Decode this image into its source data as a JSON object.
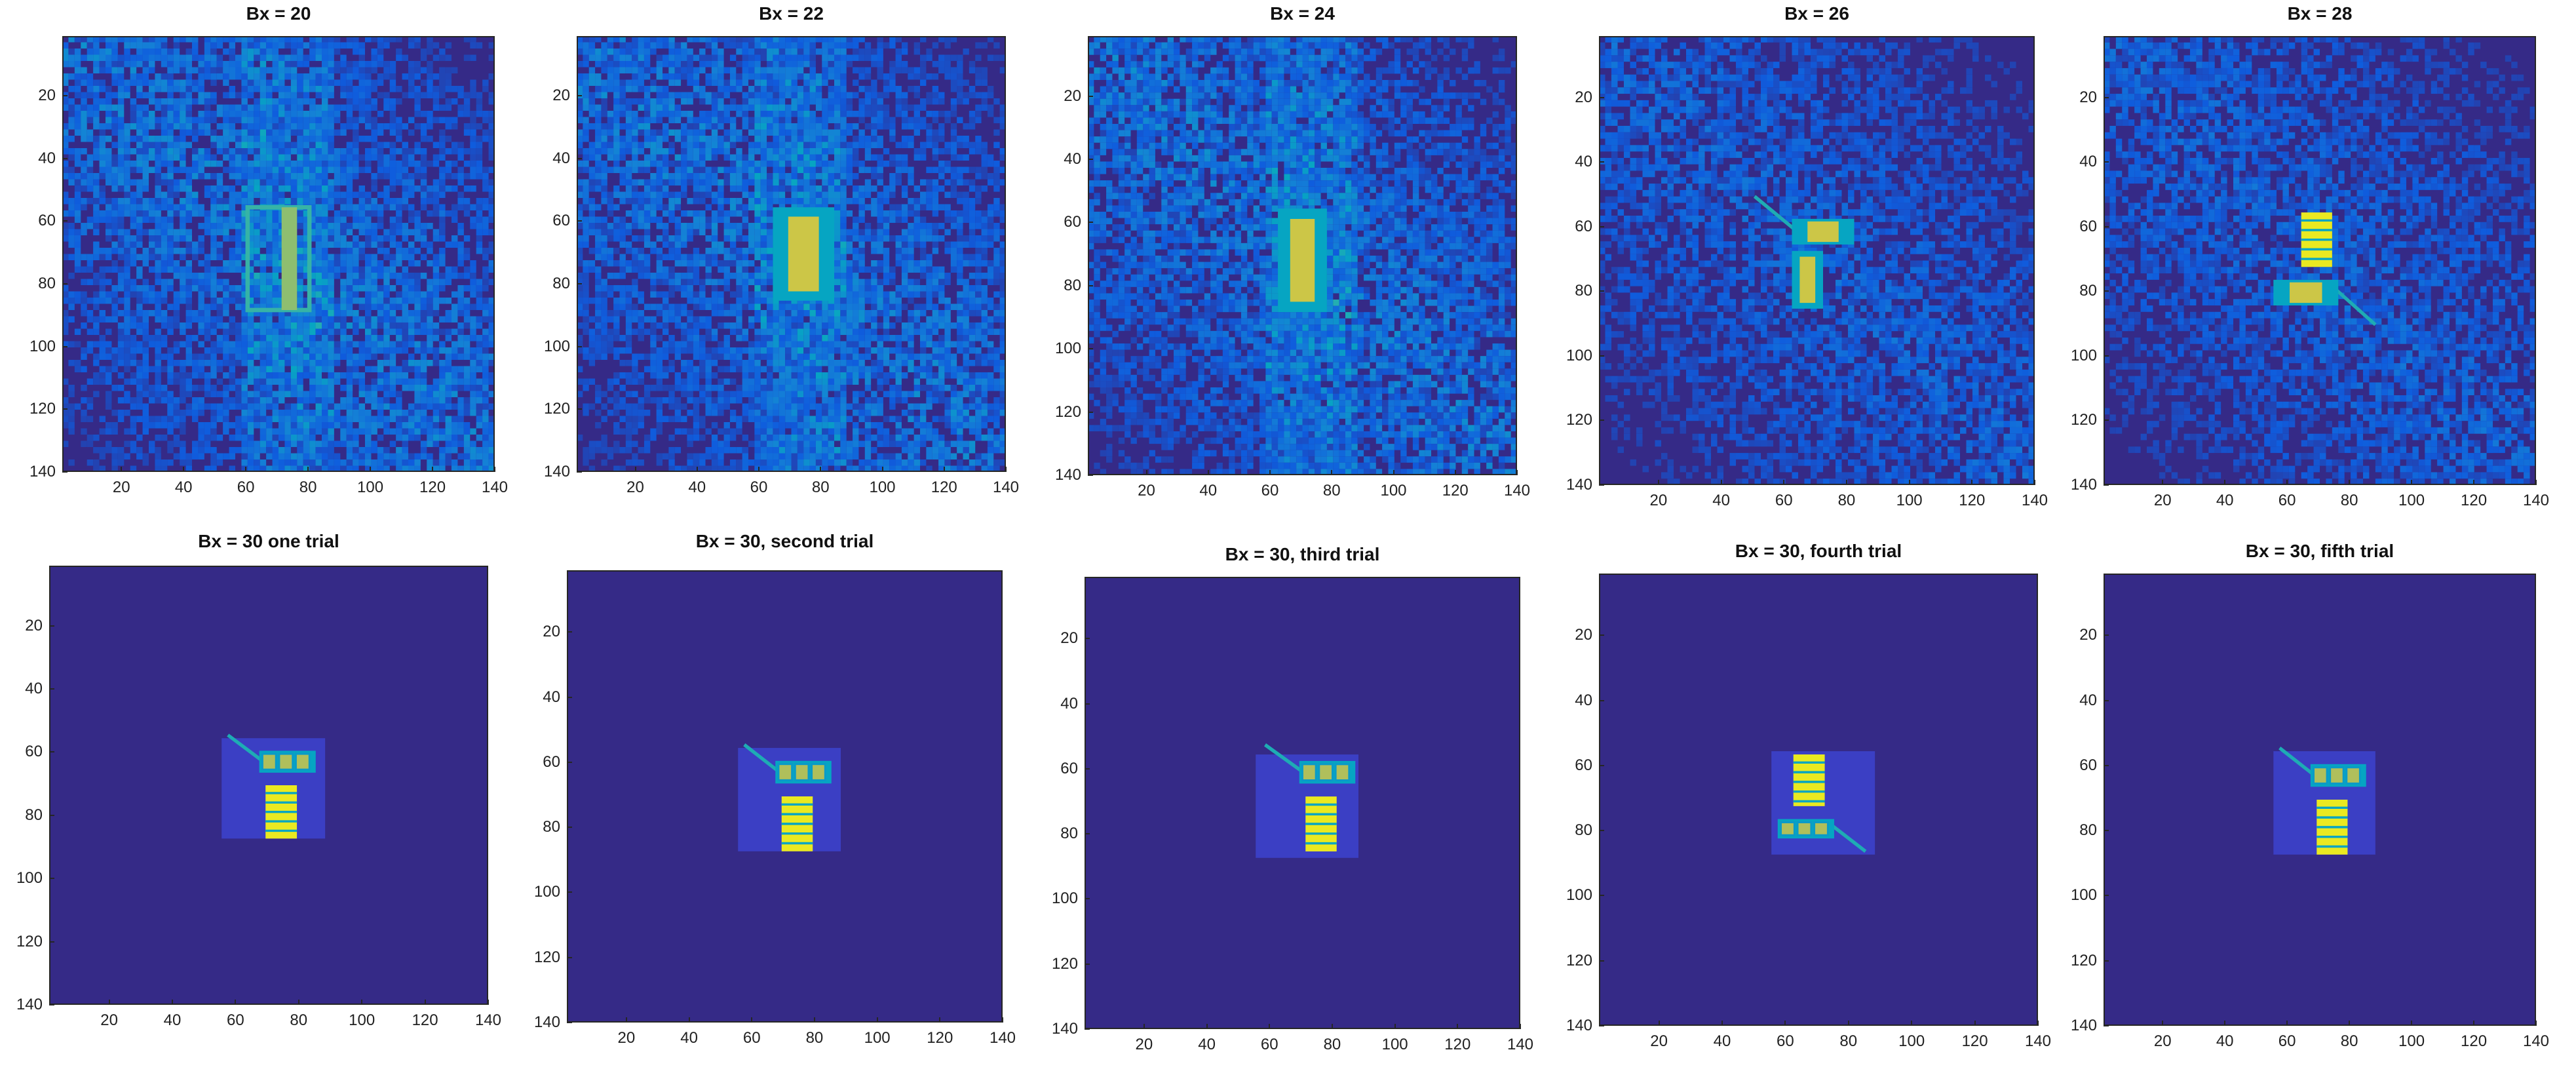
{
  "chart_data": [
    {
      "type": "heatmap",
      "title": "Bx = 20",
      "x_ticks": [
        20,
        40,
        60,
        80,
        100,
        120,
        140
      ],
      "y_ticks": [
        20,
        40,
        60,
        80,
        100,
        120,
        140
      ],
      "xlim": [
        1,
        140
      ],
      "ylim": [
        1,
        140
      ],
      "colormap": "parula",
      "noise": "high",
      "object": {
        "arms": [
          {
            "x": [
              60,
              80
            ],
            "y": [
              55,
              88
            ],
            "style": "outline"
          }
        ],
        "boom": null
      }
    },
    {
      "type": "heatmap",
      "title": "Bx = 22",
      "x_ticks": [
        20,
        40,
        60,
        80,
        100,
        120,
        140
      ],
      "y_ticks": [
        20,
        40,
        60,
        80,
        100,
        120,
        140
      ],
      "xlim": [
        1,
        140
      ],
      "ylim": [
        1,
        140
      ],
      "colormap": "parula",
      "noise": "high",
      "object": {
        "arms": [
          {
            "x": [
              64,
              84
            ],
            "y": [
              55,
              85
            ],
            "style": "blob"
          }
        ],
        "boom": null
      }
    },
    {
      "type": "heatmap",
      "title": "Bx = 24",
      "x_ticks": [
        20,
        40,
        60,
        80,
        100,
        120,
        140
      ],
      "y_ticks": [
        20,
        40,
        60,
        80,
        100,
        120,
        140
      ],
      "xlim": [
        1,
        140
      ],
      "ylim": [
        1,
        140
      ],
      "colormap": "parula",
      "noise": "high",
      "object": {
        "arms": [
          {
            "x": [
              62,
              78
            ],
            "y": [
              55,
              88
            ],
            "style": "blob"
          }
        ],
        "boom": null
      }
    },
    {
      "type": "heatmap",
      "title": "Bx = 26",
      "x_ticks": [
        20,
        40,
        60,
        80,
        100,
        120,
        140
      ],
      "y_ticks": [
        20,
        40,
        60,
        80,
        100,
        120,
        140
      ],
      "xlim": [
        1,
        140
      ],
      "ylim": [
        1,
        140
      ],
      "colormap": "parula",
      "noise": "medium",
      "object": {
        "arms": [
          {
            "x": [
              62,
              82
            ],
            "y": [
              57,
              65
            ],
            "style": "blob"
          },
          {
            "x": [
              62,
              72
            ],
            "y": [
              67,
              85
            ],
            "style": "blob"
          }
        ],
        "boom": {
          "x": [
            50,
            65
          ],
          "y": [
            50,
            62
          ]
        }
      }
    },
    {
      "type": "heatmap",
      "title": "Bx = 28",
      "x_ticks": [
        20,
        40,
        60,
        80,
        100,
        120,
        140
      ],
      "y_ticks": [
        20,
        40,
        60,
        80,
        100,
        120,
        140
      ],
      "xlim": [
        1,
        140
      ],
      "ylim": [
        1,
        140
      ],
      "colormap": "parula",
      "noise": "medium",
      "object": {
        "arms": [
          {
            "x": [
              64,
              74
            ],
            "y": [
              55,
              72
            ],
            "style": "panel"
          },
          {
            "x": [
              55,
              76
            ],
            "y": [
              76,
              84
            ],
            "style": "blob"
          }
        ],
        "boom": {
          "x": [
            74,
            88
          ],
          "y": [
            78,
            90
          ]
        }
      }
    },
    {
      "type": "heatmap",
      "title": "Bx = 30 one trial",
      "x_ticks": [
        20,
        40,
        60,
        80,
        100,
        120,
        140
      ],
      "y_ticks": [
        20,
        40,
        60,
        80,
        100,
        120,
        140
      ],
      "xlim": [
        1,
        140
      ],
      "ylim": [
        1,
        140
      ],
      "colormap": "parula",
      "noise": "none",
      "object": {
        "box": {
          "x": [
            55,
            88
          ],
          "y": [
            55,
            87
          ]
        },
        "arms": [
          {
            "x": [
              67,
              85
            ],
            "y": [
              59,
              66
            ],
            "style": "cells"
          },
          {
            "x": [
              69,
              79
            ],
            "y": [
              70,
              87
            ],
            "style": "panel"
          }
        ],
        "boom": {
          "x": [
            57,
            69
          ],
          "y": [
            54,
            63
          ]
        }
      }
    },
    {
      "type": "heatmap",
      "title": "Bx = 30, second trial",
      "x_ticks": [
        20,
        40,
        60,
        80,
        100,
        120,
        140
      ],
      "y_ticks": [
        20,
        40,
        60,
        80,
        100,
        120,
        140
      ],
      "xlim": [
        1,
        140
      ],
      "ylim": [
        1,
        140
      ],
      "colormap": "parula",
      "noise": "none",
      "object": {
        "box": {
          "x": [
            55,
            88
          ],
          "y": [
            55,
            87
          ]
        },
        "arms": [
          {
            "x": [
              67,
              85
            ],
            "y": [
              59,
              66
            ],
            "style": "cells"
          },
          {
            "x": [
              69,
              79
            ],
            "y": [
              70,
              87
            ],
            "style": "panel"
          }
        ],
        "boom": {
          "x": [
            57,
            69
          ],
          "y": [
            54,
            63
          ]
        }
      }
    },
    {
      "type": "heatmap",
      "title": "Bx = 30, third trial",
      "x_ticks": [
        20,
        40,
        60,
        80,
        100,
        120,
        140
      ],
      "y_ticks": [
        20,
        40,
        60,
        80,
        100,
        120,
        140
      ],
      "xlim": [
        1,
        140
      ],
      "ylim": [
        1,
        140
      ],
      "colormap": "parula",
      "noise": "none",
      "object": {
        "box": {
          "x": [
            55,
            88
          ],
          "y": [
            55,
            87
          ]
        },
        "arms": [
          {
            "x": [
              69,
              87
            ],
            "y": [
              57,
              64
            ],
            "style": "cells"
          },
          {
            "x": [
              71,
              81
            ],
            "y": [
              68,
              85
            ],
            "style": "panel"
          }
        ],
        "boom": {
          "x": [
            58,
            71
          ],
          "y": [
            52,
            61
          ]
        }
      }
    },
    {
      "type": "heatmap",
      "title": "Bx = 30, fourth trial",
      "x_ticks": [
        20,
        40,
        60,
        80,
        100,
        120,
        140
      ],
      "y_ticks": [
        20,
        40,
        60,
        80,
        100,
        120,
        140
      ],
      "xlim": [
        1,
        140
      ],
      "ylim": [
        1,
        140
      ],
      "colormap": "parula",
      "noise": "none",
      "object": {
        "box": {
          "x": [
            55,
            88
          ],
          "y": [
            55,
            87
          ]
        },
        "arms": [
          {
            "x": [
              62,
              72
            ],
            "y": [
              56,
              72
            ],
            "style": "panel"
          },
          {
            "x": [
              57,
              75
            ],
            "y": [
              76,
              82
            ],
            "style": "cells"
          }
        ],
        "boom": {
          "x": [
            73,
            85
          ],
          "y": [
            77,
            86
          ]
        }
      }
    },
    {
      "type": "heatmap",
      "title": "Bx = 30, fifth trial",
      "x_ticks": [
        20,
        40,
        60,
        80,
        100,
        120,
        140
      ],
      "y_ticks": [
        20,
        40,
        60,
        80,
        100,
        120,
        140
      ],
      "xlim": [
        1,
        140
      ],
      "ylim": [
        1,
        140
      ],
      "colormap": "parula",
      "noise": "none",
      "object": {
        "box": {
          "x": [
            55,
            88
          ],
          "y": [
            55,
            87
          ]
        },
        "arms": [
          {
            "x": [
              67,
              85
            ],
            "y": [
              59,
              66
            ],
            "style": "cells"
          },
          {
            "x": [
              69,
              79
            ],
            "y": [
              70,
              87
            ],
            "style": "panel"
          }
        ],
        "boom": {
          "x": [
            57,
            69
          ],
          "y": [
            54,
            63
          ]
        }
      }
    }
  ]
}
